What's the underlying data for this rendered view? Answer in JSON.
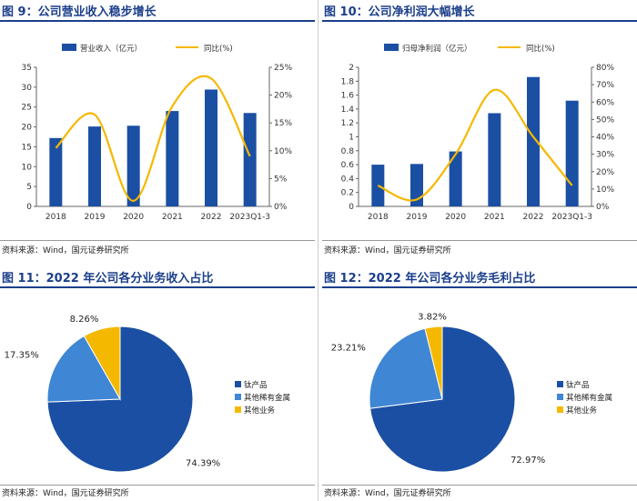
{
  "source_text": "资料来源：Wind，国元证券研究所",
  "colors": {
    "bar": "#1b4fa3",
    "line": "#f5b800",
    "pie_main": "#1b4fa3",
    "pie_second": "#3f86d4",
    "pie_third": "#f5b800",
    "title": "#1b3f8b"
  },
  "chart_data": [
    {
      "type": "bar",
      "title": "图 9：公司营业收入稳步增长",
      "categories": [
        "2018",
        "2019",
        "2020",
        "2021",
        "2022",
        "2023Q1-3"
      ],
      "legend": [
        "营业收入（亿元）",
        "同比(%)"
      ],
      "series": [
        {
          "name": "营业收入（亿元）",
          "axis": "left",
          "values": [
            17.2,
            20.1,
            20.3,
            24.0,
            29.4,
            23.5
          ]
        },
        {
          "name": "同比(%)",
          "axis": "right",
          "kind": "line",
          "values": [
            10.5,
            16.5,
            1.0,
            18.0,
            23.0,
            9.0
          ]
        }
      ],
      "ylim_left": [
        0,
        35
      ],
      "yticks_left": [
        "0",
        "5",
        "10",
        "15",
        "20",
        "25",
        "30",
        "35"
      ],
      "ylim_right": [
        0,
        25
      ],
      "yticks_right": [
        "0%",
        "5%",
        "10%",
        "15%",
        "20%",
        "25%"
      ],
      "legend_position": "top"
    },
    {
      "type": "bar",
      "title": "图 10：公司净利润大幅增长",
      "categories": [
        "2018",
        "2019",
        "2020",
        "2021",
        "2022",
        "2023Q1-3"
      ],
      "legend": [
        "归母净利润（亿元）",
        "同比(%)"
      ],
      "series": [
        {
          "name": "归母净利润（亿元）",
          "axis": "left",
          "values": [
            0.6,
            0.61,
            0.79,
            1.34,
            1.86,
            1.52
          ]
        },
        {
          "name": "同比(%)",
          "axis": "right",
          "kind": "line",
          "values": [
            12,
            4,
            30,
            67,
            40,
            12
          ]
        }
      ],
      "ylim_left": [
        0,
        2
      ],
      "yticks_left": [
        "0",
        "0.2",
        "0.4",
        "0.6",
        "0.8",
        "1",
        "1.2",
        "1.4",
        "1.6",
        "1.8",
        "2"
      ],
      "ylim_right": [
        0,
        80
      ],
      "yticks_right": [
        "0%",
        "10%",
        "20%",
        "30%",
        "40%",
        "50%",
        "60%",
        "70%",
        "80%"
      ],
      "legend_position": "top"
    },
    {
      "type": "pie",
      "title": "图 11：2022 年公司各分业务收入占比",
      "labels": [
        "钛产品",
        "其他稀有金属",
        "其他业务"
      ],
      "values": [
        74.39,
        17.35,
        8.26
      ],
      "value_labels": [
        "74.39%",
        "17.35%",
        "8.26%"
      ],
      "legend_position": "right"
    },
    {
      "type": "pie",
      "title": "图 12：2022 年公司各分业务毛利占比",
      "labels": [
        "钛产品",
        "其他稀有金属",
        "其他业务"
      ],
      "values": [
        72.97,
        23.21,
        3.82
      ],
      "value_labels": [
        "72.97%",
        "23.21%",
        "3.82%"
      ],
      "legend_position": "right"
    }
  ]
}
